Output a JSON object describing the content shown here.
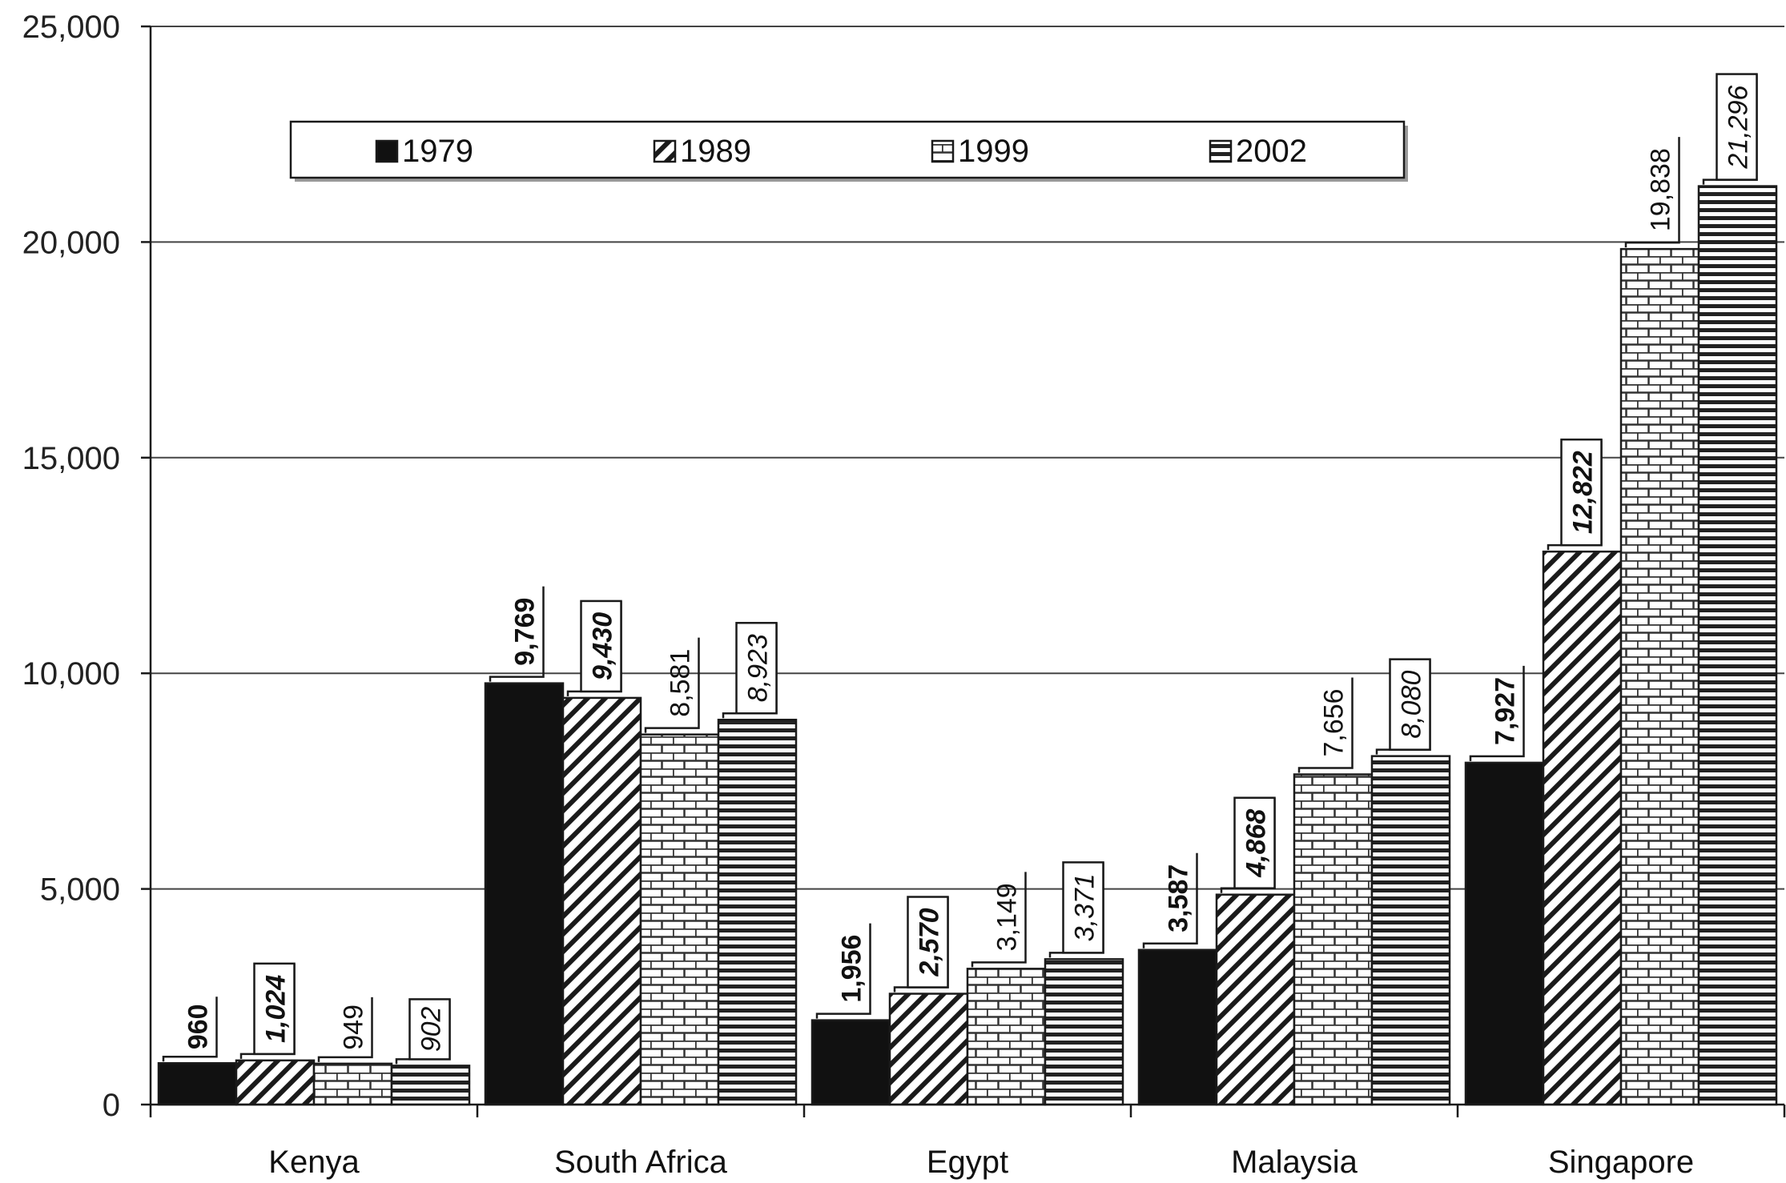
{
  "chart_data": {
    "type": "bar",
    "categories": [
      "Kenya",
      "South Africa",
      "Egypt",
      "Malaysia",
      "Singapore"
    ],
    "series": [
      {
        "name": "1979",
        "values": [
          960,
          9769,
          1956,
          3587,
          7927
        ],
        "labels": [
          "960",
          "9,769",
          "1,956",
          "3,587",
          "7,927"
        ],
        "pattern": "solid"
      },
      {
        "name": "1989",
        "values": [
          1024,
          9430,
          2570,
          4868,
          12822
        ],
        "labels": [
          "1,024",
          "9,430",
          "2,570",
          "4,868",
          "12,822"
        ],
        "pattern": "diagonal"
      },
      {
        "name": "1999",
        "values": [
          949,
          8581,
          3149,
          7656,
          19838
        ],
        "labels": [
          "949",
          "8,581",
          "3,149",
          "7,656",
          "19,838"
        ],
        "pattern": "brick"
      },
      {
        "name": "2002",
        "values": [
          902,
          8923,
          3371,
          8080,
          21296
        ],
        "labels": [
          "902",
          "8,923",
          "3,371",
          "8,080",
          "21,296"
        ],
        "pattern": "horizontal"
      }
    ],
    "ylim": [
      0,
      25000
    ],
    "yticks": [
      0,
      5000,
      10000,
      15000,
      20000,
      25000
    ],
    "ytick_labels": [
      "0",
      "5,000",
      "10,000",
      "15,000",
      "20,000",
      "25,000"
    ],
    "grid": true,
    "legend_position": "top",
    "colors": {
      "bar_dark": "#111111",
      "stroke": "#1a1a1a",
      "grid": "#444444",
      "background": "#ffffff"
    }
  }
}
